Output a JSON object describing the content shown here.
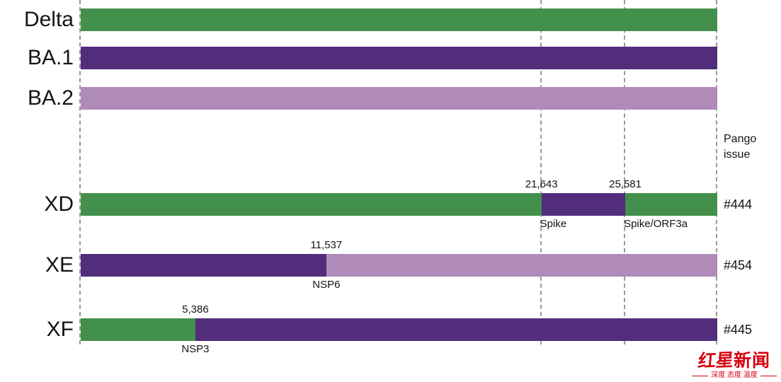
{
  "chart_data": {
    "type": "bar",
    "orientation": "horizontal",
    "variant": "genome-recombination-map",
    "title": "",
    "genome_length": 29903,
    "grid": "dashed-vertical-guides",
    "guide_lines": [
      0,
      21643,
      25581,
      29903
    ],
    "pango_issue_header": "Pango issue",
    "colors": {
      "Delta": "#43904C",
      "BA.1": "#512D7C",
      "BA.2": "#B08BB9"
    },
    "rows": [
      {
        "label": "Delta",
        "segments": [
          {
            "lineage": "Delta",
            "start": 0,
            "end": 29903
          }
        ]
      },
      {
        "label": "BA.1",
        "segments": [
          {
            "lineage": "BA.1",
            "start": 0,
            "end": 29903
          }
        ]
      },
      {
        "label": "BA.2",
        "segments": [
          {
            "lineage": "BA.2",
            "start": 0,
            "end": 29903
          }
        ]
      },
      {
        "label": "XD",
        "pango_issue": "#444",
        "segments": [
          {
            "lineage": "Delta",
            "start": 0,
            "end": 21643
          },
          {
            "lineage": "BA.1",
            "start": 21643,
            "end": 25581
          },
          {
            "lineage": "Delta",
            "start": 25581,
            "end": 29903
          }
        ],
        "breakpoints": [
          {
            "position": 21643,
            "position_label": "21,643",
            "gene": "Spike",
            "gene_align": "left"
          },
          {
            "position": 25581,
            "position_label": "25,581",
            "gene": "Spike/ORF3a",
            "gene_align": "left"
          }
        ]
      },
      {
        "label": "XE",
        "pango_issue": "#454",
        "segments": [
          {
            "lineage": "BA.1",
            "start": 0,
            "end": 11537
          },
          {
            "lineage": "BA.2",
            "start": 11537,
            "end": 29903
          }
        ],
        "breakpoints": [
          {
            "position": 11537,
            "position_label": "11,537",
            "gene": "NSP6",
            "gene_align": "center"
          }
        ]
      },
      {
        "label": "XF",
        "pango_issue": "#445",
        "segments": [
          {
            "lineage": "Delta",
            "start": 0,
            "end": 5386
          },
          {
            "lineage": "BA.1",
            "start": 5386,
            "end": 29903
          }
        ],
        "breakpoints": [
          {
            "position": 5386,
            "position_label": "5,386",
            "gene": "NSP3",
            "gene_align": "center"
          }
        ]
      }
    ]
  },
  "watermark": {
    "logo_script_text": "红星",
    "logo_block_text": "新闻",
    "tagline": "深度 态度 温度",
    "color": "#D7000F"
  }
}
